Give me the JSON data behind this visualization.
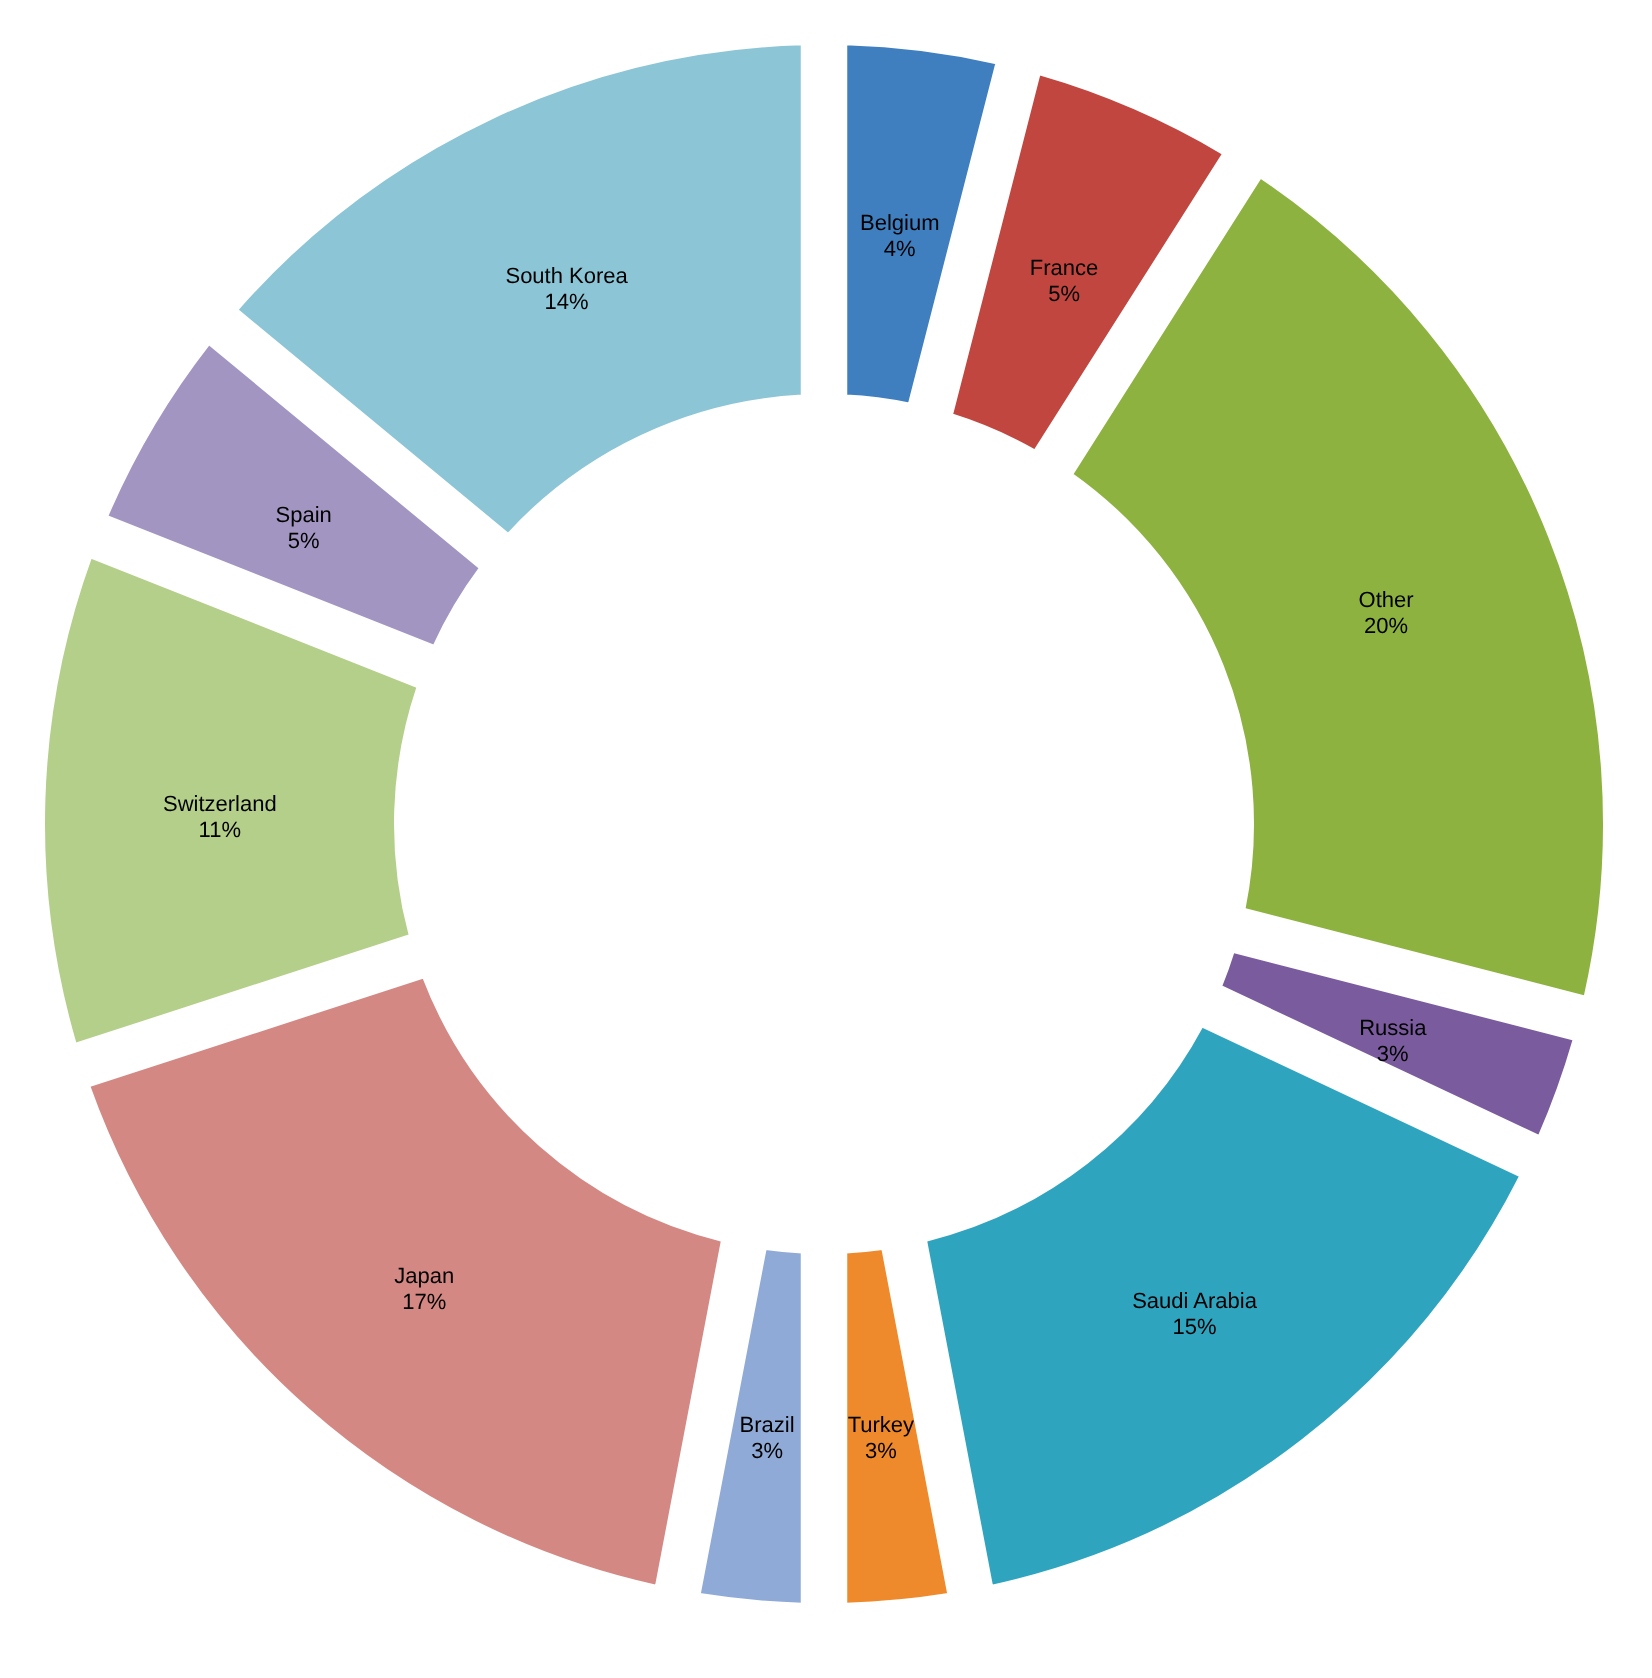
{
  "chart_data": {
    "type": "donut",
    "categories": [
      "Belgium",
      "France",
      "Other",
      "Russia",
      "Saudi Arabia",
      "Turkey",
      "Brazil",
      "Japan",
      "Switzerland",
      "Spain",
      "South Korea"
    ],
    "values": [
      4,
      5,
      20,
      3,
      15,
      3,
      3,
      17,
      11,
      5,
      14
    ],
    "value_labels": [
      "4%",
      "5%",
      "20%",
      "3%",
      "15%",
      "3%",
      "3%",
      "17%",
      "11%",
      "5%",
      "14%"
    ],
    "colors": [
      "#3f7fbf",
      "#c0463f",
      "#8db23f",
      "#7a5c9e",
      "#2fa4bf",
      "#ee8a2b",
      "#8faad6",
      "#d48883",
      "#b4cf8a",
      "#a395c2",
      "#8cc5d6"
    ]
  }
}
